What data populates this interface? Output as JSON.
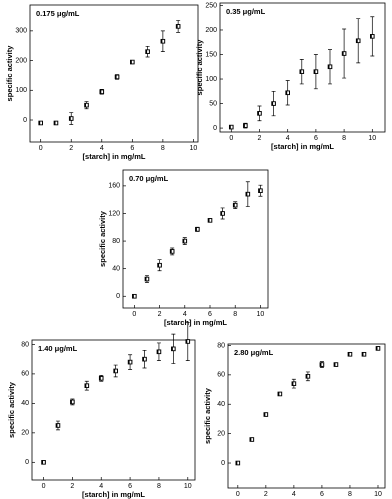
{
  "chart_data": [
    {
      "type": "scatter",
      "title": "0.175 μg/mL",
      "xlabel": "[starch] in mg/mL",
      "ylabel": "specific activity",
      "x": [
        0,
        1,
        2,
        3,
        4,
        5,
        6,
        7,
        8,
        9
      ],
      "values": [
        -10,
        -10,
        5,
        50,
        95,
        145,
        195,
        230,
        265,
        315
      ],
      "errors": [
        5,
        5,
        20,
        12,
        8,
        8,
        3,
        18,
        35,
        20
      ],
      "color": "#000000",
      "xlim": [
        -0.7,
        10.3
      ],
      "ylim": [
        -74,
        387
      ],
      "xticks": [
        0,
        2,
        4,
        6,
        8,
        10
      ],
      "yticks": [
        0,
        100,
        200,
        300
      ]
    },
    {
      "type": "scatter",
      "title": "0.35 μg/mL",
      "xlabel": "[starch] in mg/mL",
      "ylabel": "specific activity",
      "x": [
        0,
        1,
        2,
        3,
        4,
        5,
        6,
        7,
        8,
        9,
        10
      ],
      "values": [
        2,
        5,
        30,
        50,
        72,
        115,
        115,
        125,
        152,
        178,
        187
      ],
      "errors": [
        2,
        5,
        15,
        25,
        25,
        25,
        35,
        35,
        50,
        45,
        40
      ],
      "color": "#000000",
      "xlim": [
        -0.8,
        10.9
      ],
      "ylim": [
        -8,
        255
      ],
      "xticks": [
        0,
        2,
        4,
        6,
        8,
        10
      ],
      "yticks": [
        0,
        50,
        100,
        150,
        200,
        250
      ]
    },
    {
      "type": "scatter",
      "title": "0.70 μg/mL",
      "xlabel": "[starch] in mg/mL",
      "ylabel": "specific activity",
      "x": [
        0,
        1,
        2,
        3,
        4,
        5,
        6,
        7,
        8,
        9,
        10
      ],
      "values": [
        0,
        25,
        45,
        65,
        80,
        97,
        110,
        120,
        132,
        148,
        153
      ],
      "errors": [
        1,
        5,
        8,
        5,
        5,
        3,
        2,
        8,
        5,
        18,
        8
      ],
      "color": "#000000",
      "xlim": [
        -0.9,
        10.6
      ],
      "ylim": [
        -17,
        183
      ],
      "xticks": [
        0,
        2,
        4,
        6,
        8,
        10
      ],
      "yticks": [
        0,
        40,
        80,
        120,
        160
      ]
    },
    {
      "type": "scatter",
      "title": "1.40 μg/mL",
      "xlabel": "[starch] in mg/mL",
      "ylabel": "specific activity",
      "x": [
        0,
        1,
        2,
        3,
        4,
        5,
        6,
        7,
        8,
        9,
        10
      ],
      "values": [
        0,
        25,
        41,
        52,
        57,
        62,
        68,
        70,
        75,
        77,
        82
      ],
      "errors": [
        1,
        3,
        2,
        3,
        2,
        4,
        5,
        6,
        6,
        10,
        13
      ],
      "color": "#000000",
      "xlim": [
        -0.8,
        10.5
      ],
      "ylim": [
        -12,
        83
      ],
      "xticks": [
        0,
        2,
        4,
        6,
        8,
        10
      ],
      "yticks": [
        0,
        20,
        40,
        60,
        80
      ]
    },
    {
      "type": "scatter",
      "title": "2.80 μg/mL",
      "xlabel": "[starch] in mg/mL",
      "ylabel": "specific activity",
      "x": [
        0,
        1,
        2,
        3,
        4,
        5,
        6,
        7,
        8,
        9,
        10
      ],
      "values": [
        0,
        16,
        33,
        47,
        54,
        59,
        67,
        67,
        74,
        74,
        78
      ],
      "errors": [
        1,
        1,
        1,
        1,
        3,
        3,
        2,
        1,
        1,
        1,
        1
      ],
      "color": "#000000",
      "xlim": [
        -0.7,
        10.5
      ],
      "ylim": [
        -17,
        81
      ],
      "xticks": [
        0,
        2,
        4,
        6,
        8,
        10
      ],
      "yticks": [
        0,
        20,
        40,
        60,
        80
      ]
    }
  ]
}
